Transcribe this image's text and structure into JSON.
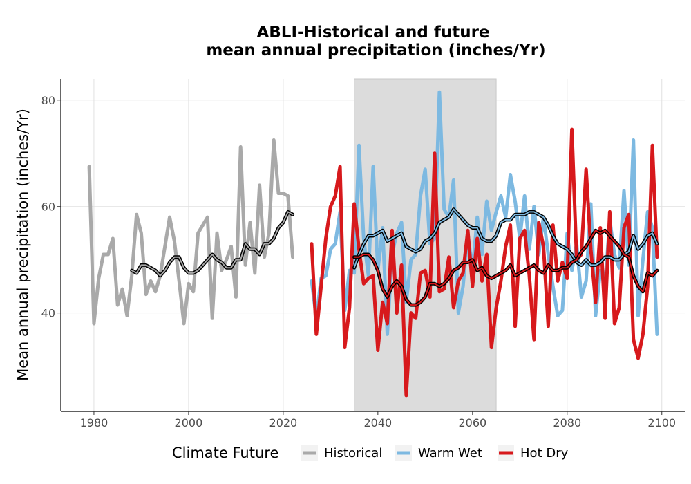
{
  "chart_data": {
    "type": "line",
    "title": "ABLI-Historical and future\nmean annual precipitation (inches/Yr)",
    "title_lines": [
      "ABLI-Historical and future",
      "mean annual precipitation (inches/Yr)"
    ],
    "xlabel": "",
    "ylabel": "Mean annual precipitation (inches/Yr)",
    "xlim": [
      1973,
      2105
    ],
    "ylim": [
      21.5,
      84
    ],
    "xticks": [
      1980,
      2000,
      2020,
      2040,
      2060,
      2080,
      2100
    ],
    "yticks": [
      40,
      60,
      80
    ],
    "grid": true,
    "shaded_period": [
      2035,
      2065
    ],
    "legend": {
      "title": "Climate Future",
      "position": "bottom",
      "entries": [
        {
          "label": "Historical",
          "color": "#a9a9a9"
        },
        {
          "label": "Warm Wet",
          "color": "#7db9e1"
        },
        {
          "label": "Hot Dry",
          "color": "#d7191c"
        }
      ]
    },
    "series": [
      {
        "name": "Historical",
        "color": "#a9a9a9",
        "x": [
          1979,
          1980,
          1981,
          1982,
          1983,
          1984,
          1985,
          1986,
          1987,
          1988,
          1989,
          1990,
          1991,
          1992,
          1993,
          1994,
          1995,
          1996,
          1997,
          1998,
          1999,
          2000,
          2001,
          2002,
          2003,
          2004,
          2005,
          2006,
          2007,
          2008,
          2009,
          2010,
          2011,
          2012,
          2013,
          2014,
          2015,
          2016,
          2017,
          2018,
          2019,
          2020,
          2021,
          2022
        ],
        "values": [
          67.5,
          38,
          46.5,
          51,
          51,
          54,
          41.5,
          44.5,
          39.5,
          47,
          58.5,
          55,
          43.5,
          46,
          44,
          47,
          52.5,
          58,
          53.5,
          46,
          38,
          45.5,
          44,
          55,
          56.5,
          58,
          39,
          55,
          48,
          50,
          52.5,
          43,
          71.2,
          49,
          57,
          47.5,
          64,
          50.5,
          55,
          72.5,
          62.5,
          62.5,
          62,
          50.5
        ],
        "smooth_x": [
          1988,
          1989,
          1990,
          1991,
          1992,
          1993,
          1994,
          1995,
          1996,
          1997,
          1998,
          1999,
          2000,
          2001,
          2002,
          2003,
          2004,
          2005,
          2006,
          2007,
          2008,
          2009,
          2010,
          2011,
          2012,
          2013,
          2014,
          2015,
          2016,
          2017,
          2018,
          2019,
          2020,
          2021,
          2022
        ],
        "smooth_values": [
          48,
          47.5,
          49,
          49,
          48.5,
          48,
          47,
          48,
          49.5,
          50.5,
          50.5,
          48.5,
          47.5,
          47.5,
          48,
          49,
          50,
          51,
          50,
          49.5,
          48.5,
          48.5,
          50,
          50,
          53,
          52,
          52,
          51,
          53,
          53,
          54,
          56,
          57,
          59,
          58.5
        ]
      },
      {
        "name": "Warm Wet",
        "color": "#7db9e1",
        "x": [
          2026,
          2027,
          2028,
          2029,
          2030,
          2031,
          2032,
          2033,
          2034,
          2035,
          2036,
          2037,
          2038,
          2039,
          2040,
          2041,
          2042,
          2043,
          2044,
          2045,
          2046,
          2047,
          2048,
          2049,
          2050,
          2051,
          2052,
          2053,
          2054,
          2055,
          2056,
          2057,
          2058,
          2059,
          2060,
          2061,
          2062,
          2063,
          2064,
          2065,
          2066,
          2067,
          2068,
          2069,
          2070,
          2071,
          2072,
          2073,
          2074,
          2075,
          2076,
          2077,
          2078,
          2079,
          2080,
          2081,
          2082,
          2083,
          2084,
          2085,
          2086,
          2087,
          2088,
          2089,
          2090,
          2091,
          2092,
          2093,
          2094,
          2095,
          2096,
          2097,
          2098,
          2099
        ],
        "values": [
          46,
          39,
          46.5,
          47,
          52,
          53,
          59,
          40.5,
          48,
          47.5,
          71.5,
          54,
          47,
          67.5,
          48,
          56,
          36,
          51,
          55,
          57,
          42,
          50,
          51,
          62,
          67,
          53,
          54,
          81.5,
          59.5,
          58,
          65,
          40,
          45,
          55,
          48,
          58,
          51,
          61,
          55.5,
          59,
          62,
          58,
          66,
          61,
          54,
          62,
          52,
          60,
          51,
          58,
          51,
          45,
          39.5,
          40.5,
          55,
          48,
          53,
          43,
          46,
          60.5,
          39.5,
          48,
          45,
          57.5,
          51,
          48.5,
          63,
          49,
          72.5,
          39.5,
          50,
          59,
          56,
          36
        ],
        "smooth_x": [
          2035,
          2036,
          2037,
          2038,
          2039,
          2040,
          2041,
          2042,
          2043,
          2044,
          2045,
          2046,
          2047,
          2048,
          2049,
          2050,
          2051,
          2052,
          2053,
          2054,
          2055,
          2056,
          2057,
          2058,
          2059,
          2060,
          2061,
          2062,
          2063,
          2064,
          2065,
          2066,
          2067,
          2068,
          2069,
          2070,
          2071,
          2072,
          2073,
          2074,
          2075,
          2076,
          2077,
          2078,
          2079,
          2080,
          2081,
          2082,
          2083,
          2084,
          2085,
          2086,
          2087,
          2088,
          2089,
          2090,
          2091,
          2092,
          2093,
          2094,
          2095,
          2096,
          2097,
          2098,
          2099
        ],
        "smooth_values": [
          48.5,
          51,
          53,
          54.5,
          54.5,
          55,
          55.5,
          53.5,
          54,
          54.5,
          55,
          52.5,
          52,
          51.5,
          52,
          53.5,
          54,
          55,
          57,
          57.5,
          58,
          59.5,
          58.5,
          57.5,
          56.5,
          56,
          56,
          54,
          53.5,
          53.5,
          54.5,
          57,
          57.5,
          57.5,
          58.5,
          58.5,
          58.5,
          59,
          59,
          58.5,
          58,
          56.5,
          54.5,
          53,
          52.5,
          52,
          51,
          49.5,
          49,
          50,
          49,
          49,
          49.5,
          50.5,
          50.5,
          50,
          50,
          51,
          51.5,
          54.5,
          52,
          53,
          54.5,
          55,
          53
        ]
      },
      {
        "name": "Hot Dry",
        "color": "#d7191c",
        "x": [
          2026,
          2027,
          2028,
          2029,
          2030,
          2031,
          2032,
          2033,
          2034,
          2035,
          2036,
          2037,
          2038,
          2039,
          2040,
          2041,
          2042,
          2043,
          2044,
          2045,
          2046,
          2047,
          2048,
          2049,
          2050,
          2051,
          2052,
          2053,
          2054,
          2055,
          2056,
          2057,
          2058,
          2059,
          2060,
          2061,
          2062,
          2063,
          2064,
          2065,
          2066,
          2067,
          2068,
          2069,
          2070,
          2071,
          2072,
          2073,
          2074,
          2075,
          2076,
          2077,
          2078,
          2079,
          2080,
          2081,
          2082,
          2083,
          2084,
          2085,
          2086,
          2087,
          2088,
          2089,
          2090,
          2091,
          2092,
          2093,
          2094,
          2095,
          2096,
          2097,
          2098,
          2099
        ],
        "values": [
          53,
          36,
          45,
          54,
          60,
          62,
          67.5,
          33.5,
          41,
          60.5,
          52,
          45.5,
          46.5,
          47,
          33,
          42,
          38,
          55.5,
          40,
          49,
          24.5,
          40,
          39,
          47.5,
          48,
          43,
          70,
          44,
          44.5,
          50.5,
          41,
          46,
          47.5,
          55.5,
          45,
          54,
          46,
          51,
          33.5,
          41,
          46,
          52.5,
          56.5,
          37.5,
          54,
          55.5,
          47,
          35,
          57,
          52.5,
          37.5,
          56.5,
          46,
          49.5,
          46.5,
          74.5,
          50,
          51,
          67,
          52,
          42,
          56,
          39,
          59,
          38,
          41,
          56,
          58.5,
          35,
          31.5,
          36,
          45,
          71.5,
          50.5
        ],
        "smooth_x": [
          2035,
          2036,
          2037,
          2038,
          2039,
          2040,
          2041,
          2042,
          2043,
          2044,
          2045,
          2046,
          2047,
          2048,
          2049,
          2050,
          2051,
          2052,
          2053,
          2054,
          2055,
          2056,
          2057,
          2058,
          2059,
          2060,
          2061,
          2062,
          2063,
          2064,
          2065,
          2066,
          2067,
          2068,
          2069,
          2070,
          2071,
          2072,
          2073,
          2074,
          2075,
          2076,
          2077,
          2078,
          2079,
          2080,
          2081,
          2082,
          2083,
          2084,
          2085,
          2086,
          2087,
          2088,
          2089,
          2090,
          2091,
          2092,
          2093,
          2094,
          2095,
          2096,
          2097,
          2098,
          2099
        ],
        "smooth_values": [
          50.5,
          50.5,
          51,
          51,
          50,
          48,
          44.5,
          43,
          45,
          46,
          45,
          42.5,
          41.5,
          41.5,
          42,
          43,
          45.5,
          45.5,
          45,
          45.5,
          46.5,
          48,
          48.5,
          49.5,
          49.5,
          50,
          48,
          48.5,
          47,
          46.5,
          47,
          47.5,
          48,
          49,
          47,
          47.5,
          48,
          48.5,
          49,
          48,
          47.5,
          49,
          48,
          48,
          48.5,
          48.5,
          49.5,
          50,
          51.5,
          52.5,
          54,
          55.5,
          55,
          55.5,
          54.5,
          53.5,
          52.5,
          51,
          50.5,
          47,
          45,
          44,
          47.5,
          47,
          48
        ]
      }
    ]
  }
}
